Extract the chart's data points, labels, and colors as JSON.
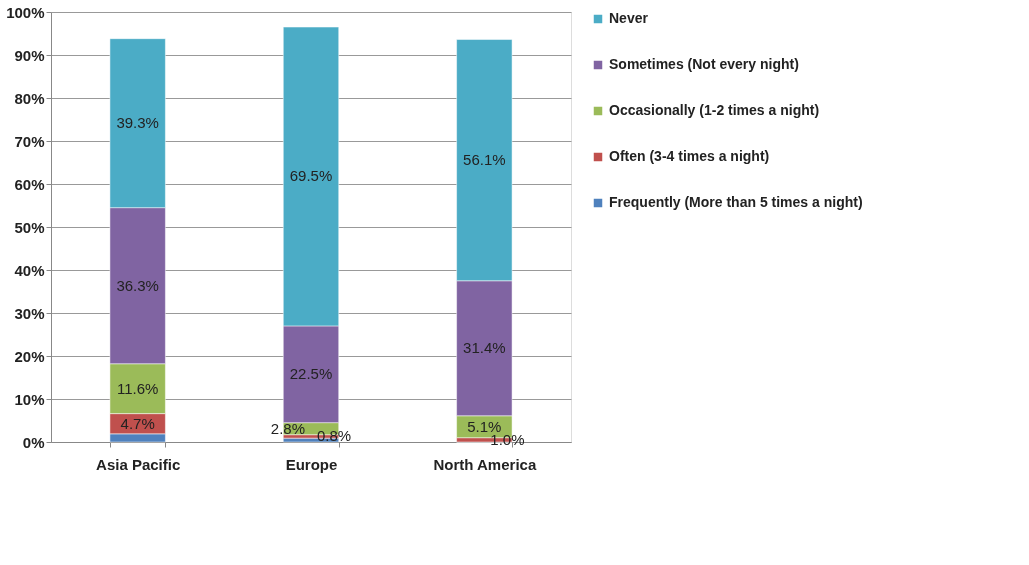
{
  "chart_data": {
    "type": "bar",
    "stacked": true,
    "categories": [
      "Asia Pacific",
      "Europe",
      "North America"
    ],
    "series": [
      {
        "name": "Frequently (More than 5 times a night)",
        "color": "#4f81bd",
        "values": [
          1.9,
          0.9,
          0.0
        ],
        "value_labels": [
          null,
          null,
          null
        ]
      },
      {
        "name": "Often (3-4 times a night)",
        "color": "#c0504d",
        "values": [
          4.7,
          0.8,
          1.0
        ],
        "value_labels": [
          "4.7%",
          "0.8%",
          "1.0%"
        ]
      },
      {
        "name": "Occasionally (1-2 times a night)",
        "color": "#9bbb59",
        "values": [
          11.6,
          2.8,
          5.1
        ],
        "value_labels": [
          "11.6%",
          "2.8%",
          "5.1%"
        ]
      },
      {
        "name": "Sometimes (Not every night)",
        "color": "#8064a2",
        "values": [
          36.3,
          22.5,
          31.4
        ],
        "value_labels": [
          "36.3%",
          "22.5%",
          "31.4%"
        ]
      },
      {
        "name": "Never",
        "color": "#4bacc6",
        "values": [
          39.3,
          69.5,
          56.1
        ],
        "value_labels": [
          "39.3%",
          "69.5%",
          "56.1%"
        ]
      }
    ],
    "ylim": [
      0,
      100
    ],
    "yticks": [
      {
        "value": 0,
        "label": "0%"
      },
      {
        "value": 10,
        "label": "10%"
      },
      {
        "value": 20,
        "label": "20%"
      },
      {
        "value": 30,
        "label": "30%"
      },
      {
        "value": 40,
        "label": "40%"
      },
      {
        "value": 50,
        "label": "50%"
      },
      {
        "value": 60,
        "label": "60%"
      },
      {
        "value": 70,
        "label": "70%"
      },
      {
        "value": 80,
        "label": "80%"
      },
      {
        "value": 90,
        "label": "90%"
      },
      {
        "value": 100,
        "label": "100%"
      }
    ],
    "grid": "y",
    "legend": "right"
  }
}
